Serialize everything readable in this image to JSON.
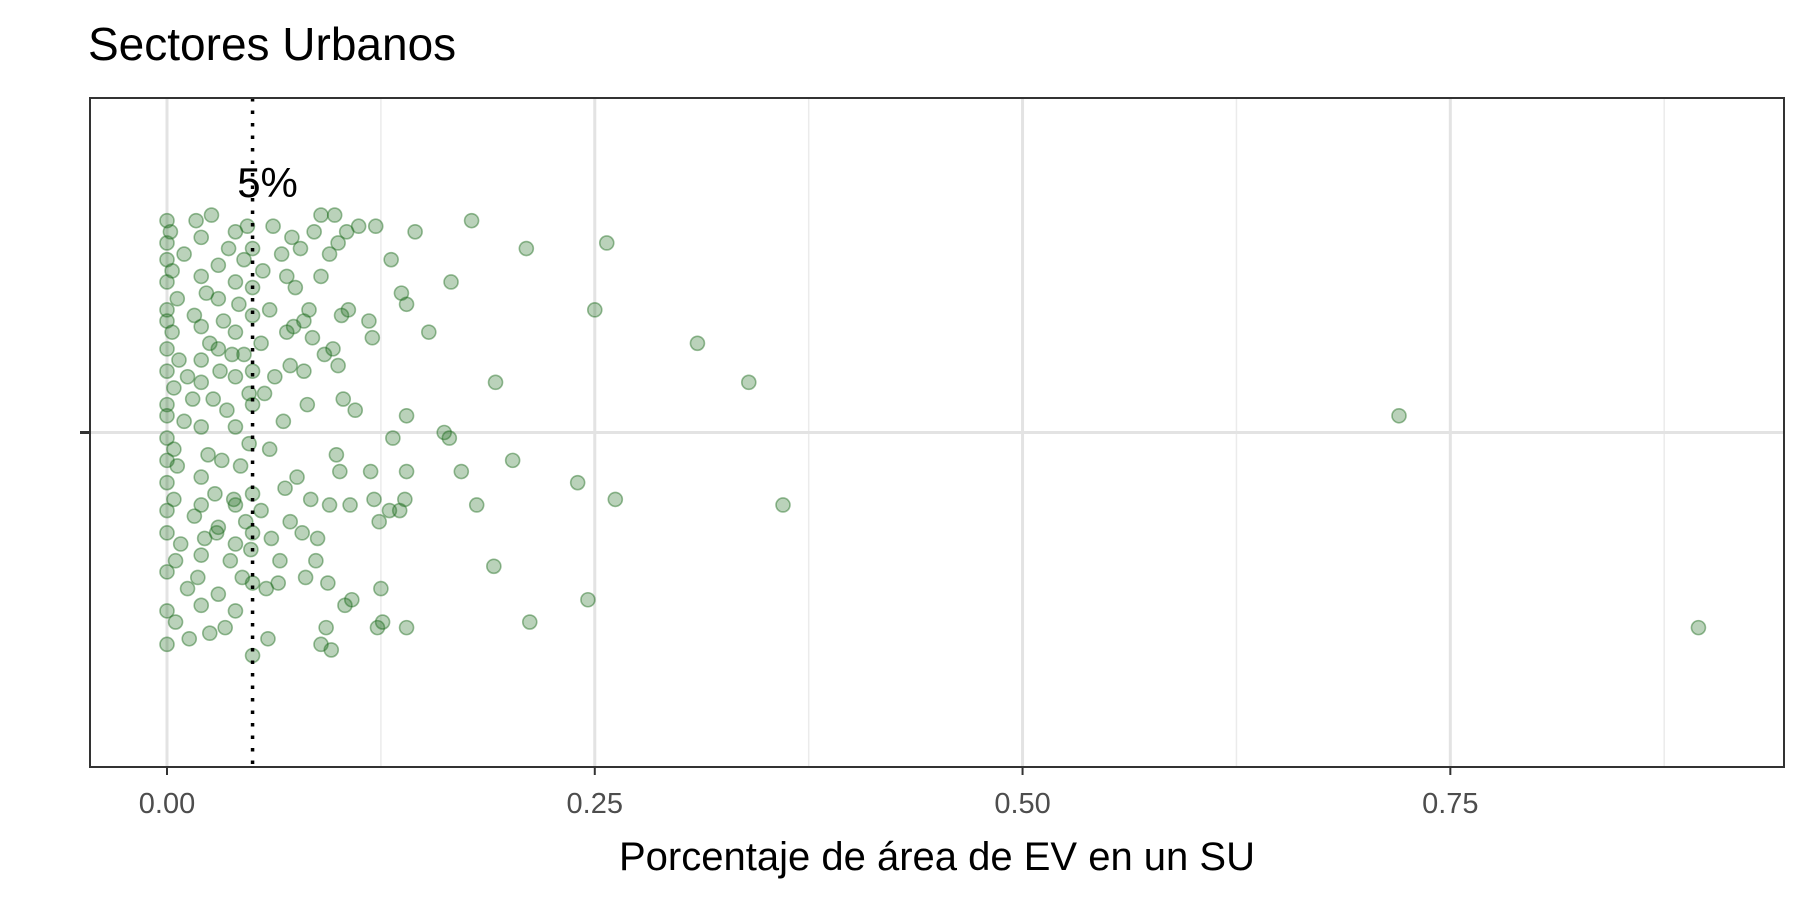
{
  "chart_data": {
    "type": "scatter",
    "title": "Sectores Urbanos",
    "xlabel": "Porcentaje de área de EV en un SU",
    "ylabel": "",
    "xlim": [
      -0.045,
      0.945
    ],
    "ylim": [
      -0.6,
      0.6
    ],
    "x_ticks": [
      0.0,
      0.25,
      0.5,
      0.75
    ],
    "x_tick_labels": [
      "0.00",
      "0.25",
      "0.50",
      "0.75"
    ],
    "grid": true,
    "point_color": "#1a6b1a",
    "reference_line": {
      "x": 0.05,
      "style": "dotted",
      "label": "5%"
    },
    "points": [
      [
        0.0,
        0.38
      ],
      [
        0.0,
        0.34
      ],
      [
        0.0,
        0.31
      ],
      [
        0.0,
        0.27
      ],
      [
        0.0,
        0.22
      ],
      [
        0.0,
        0.2
      ],
      [
        0.0,
        0.15
      ],
      [
        0.0,
        0.11
      ],
      [
        0.0,
        0.05
      ],
      [
        0.0,
        0.03
      ],
      [
        0.0,
        -0.01
      ],
      [
        0.0,
        -0.05
      ],
      [
        0.0,
        -0.09
      ],
      [
        0.0,
        -0.14
      ],
      [
        0.0,
        -0.18
      ],
      [
        0.0,
        -0.25
      ],
      [
        0.0,
        -0.32
      ],
      [
        0.0,
        -0.38
      ],
      [
        0.002,
        0.36
      ],
      [
        0.003,
        0.29
      ],
      [
        0.003,
        0.18
      ],
      [
        0.004,
        0.08
      ],
      [
        0.004,
        -0.03
      ],
      [
        0.004,
        -0.12
      ],
      [
        0.005,
        -0.23
      ],
      [
        0.005,
        -0.34
      ],
      [
        0.006,
        0.24
      ],
      [
        0.006,
        -0.06
      ],
      [
        0.007,
        0.13
      ],
      [
        0.008,
        -0.2
      ],
      [
        0.01,
        0.32
      ],
      [
        0.01,
        0.02
      ],
      [
        0.012,
        -0.28
      ],
      [
        0.012,
        0.1
      ],
      [
        0.013,
        -0.37
      ],
      [
        0.015,
        0.06
      ],
      [
        0.016,
        0.21
      ],
      [
        0.016,
        -0.15
      ],
      [
        0.017,
        0.38
      ],
      [
        0.018,
        -0.26
      ],
      [
        0.02,
        0.35
      ],
      [
        0.02,
        0.28
      ],
      [
        0.02,
        0.19
      ],
      [
        0.02,
        0.13
      ],
      [
        0.02,
        0.09
      ],
      [
        0.02,
        0.01
      ],
      [
        0.02,
        -0.08
      ],
      [
        0.02,
        -0.13
      ],
      [
        0.02,
        -0.22
      ],
      [
        0.02,
        -0.31
      ],
      [
        0.022,
        -0.19
      ],
      [
        0.023,
        0.25
      ],
      [
        0.024,
        -0.04
      ],
      [
        0.025,
        0.16
      ],
      [
        0.025,
        -0.36
      ],
      [
        0.026,
        0.39
      ],
      [
        0.027,
        0.06
      ],
      [
        0.028,
        -0.11
      ],
      [
        0.029,
        -0.18
      ],
      [
        0.03,
        0.3
      ],
      [
        0.03,
        0.24
      ],
      [
        0.03,
        0.15
      ],
      [
        0.03,
        -0.17
      ],
      [
        0.03,
        -0.29
      ],
      [
        0.031,
        0.11
      ],
      [
        0.032,
        -0.05
      ],
      [
        0.033,
        0.2
      ],
      [
        0.034,
        -0.35
      ],
      [
        0.035,
        0.04
      ],
      [
        0.036,
        0.33
      ],
      [
        0.037,
        -0.23
      ],
      [
        0.038,
        0.14
      ],
      [
        0.039,
        -0.12
      ],
      [
        0.04,
        0.36
      ],
      [
        0.04,
        0.27
      ],
      [
        0.04,
        0.18
      ],
      [
        0.04,
        0.1
      ],
      [
        0.04,
        0.01
      ],
      [
        0.04,
        -0.13
      ],
      [
        0.04,
        -0.2
      ],
      [
        0.04,
        -0.32
      ],
      [
        0.042,
        0.23
      ],
      [
        0.043,
        -0.06
      ],
      [
        0.044,
        -0.26
      ],
      [
        0.045,
        0.31
      ],
      [
        0.045,
        0.14
      ],
      [
        0.046,
        -0.16
      ],
      [
        0.047,
        0.37
      ],
      [
        0.048,
        0.07
      ],
      [
        0.048,
        -0.02
      ],
      [
        0.049,
        -0.21
      ],
      [
        0.05,
        0.33
      ],
      [
        0.05,
        0.26
      ],
      [
        0.05,
        0.21
      ],
      [
        0.05,
        0.11
      ],
      [
        0.05,
        0.05
      ],
      [
        0.05,
        -0.11
      ],
      [
        0.05,
        -0.18
      ],
      [
        0.05,
        -0.27
      ],
      [
        0.05,
        -0.4
      ],
      [
        0.055,
        0.16
      ],
      [
        0.055,
        -0.14
      ],
      [
        0.056,
        0.29
      ],
      [
        0.057,
        0.07
      ],
      [
        0.058,
        -0.28
      ],
      [
        0.059,
        -0.37
      ],
      [
        0.06,
        0.22
      ],
      [
        0.06,
        -0.03
      ],
      [
        0.061,
        -0.19
      ],
      [
        0.062,
        0.37
      ],
      [
        0.063,
        0.1
      ],
      [
        0.065,
        -0.27
      ],
      [
        0.066,
        -0.23
      ],
      [
        0.067,
        0.32
      ],
      [
        0.068,
        0.02
      ],
      [
        0.069,
        -0.1
      ],
      [
        0.07,
        0.28
      ],
      [
        0.07,
        0.18
      ],
      [
        0.072,
        0.12
      ],
      [
        0.072,
        -0.16
      ],
      [
        0.073,
        0.35
      ],
      [
        0.074,
        0.19
      ],
      [
        0.075,
        0.26
      ],
      [
        0.076,
        -0.08
      ],
      [
        0.078,
        0.33
      ],
      [
        0.079,
        -0.18
      ],
      [
        0.08,
        0.2
      ],
      [
        0.08,
        0.11
      ],
      [
        0.081,
        -0.26
      ],
      [
        0.082,
        0.05
      ],
      [
        0.083,
        0.22
      ],
      [
        0.084,
        -0.12
      ],
      [
        0.085,
        0.17
      ],
      [
        0.086,
        0.36
      ],
      [
        0.087,
        -0.23
      ],
      [
        0.088,
        -0.19
      ],
      [
        0.09,
        0.39
      ],
      [
        0.09,
        0.28
      ],
      [
        0.09,
        -0.38
      ],
      [
        0.092,
        0.14
      ],
      [
        0.093,
        -0.35
      ],
      [
        0.094,
        -0.27
      ],
      [
        0.095,
        0.32
      ],
      [
        0.095,
        -0.13
      ],
      [
        0.096,
        -0.39
      ],
      [
        0.097,
        0.15
      ],
      [
        0.098,
        0.39
      ],
      [
        0.099,
        -0.04
      ],
      [
        0.1,
        0.34
      ],
      [
        0.1,
        0.12
      ],
      [
        0.101,
        -0.07
      ],
      [
        0.102,
        0.21
      ],
      [
        0.103,
        0.06
      ],
      [
        0.104,
        -0.31
      ],
      [
        0.105,
        0.36
      ],
      [
        0.106,
        0.22
      ],
      [
        0.107,
        -0.13
      ],
      [
        0.108,
        -0.3
      ],
      [
        0.11,
        0.04
      ],
      [
        0.112,
        0.37
      ],
      [
        0.118,
        0.2
      ],
      [
        0.119,
        -0.07
      ],
      [
        0.12,
        0.17
      ],
      [
        0.121,
        -0.12
      ],
      [
        0.122,
        0.37
      ],
      [
        0.123,
        -0.35
      ],
      [
        0.124,
        -0.16
      ],
      [
        0.125,
        -0.28
      ],
      [
        0.126,
        -0.34
      ],
      [
        0.13,
        -0.14
      ],
      [
        0.131,
        0.31
      ],
      [
        0.132,
        -0.01
      ],
      [
        0.136,
        -0.14
      ],
      [
        0.137,
        0.25
      ],
      [
        0.139,
        -0.12
      ],
      [
        0.14,
        0.03
      ],
      [
        0.14,
        0.23
      ],
      [
        0.14,
        -0.07
      ],
      [
        0.14,
        -0.35
      ],
      [
        0.145,
        0.36
      ],
      [
        0.153,
        0.18
      ],
      [
        0.162,
        0.0
      ],
      [
        0.165,
        -0.01
      ],
      [
        0.166,
        0.27
      ],
      [
        0.172,
        -0.07
      ],
      [
        0.178,
        0.38
      ],
      [
        0.181,
        -0.13
      ],
      [
        0.191,
        -0.24
      ],
      [
        0.192,
        0.09
      ],
      [
        0.202,
        -0.05
      ],
      [
        0.21,
        0.33
      ],
      [
        0.212,
        -0.34
      ],
      [
        0.24,
        -0.09
      ],
      [
        0.246,
        -0.3
      ],
      [
        0.25,
        0.22
      ],
      [
        0.257,
        0.34
      ],
      [
        0.262,
        -0.12
      ],
      [
        0.31,
        0.16
      ],
      [
        0.34,
        0.09
      ],
      [
        0.36,
        -0.13
      ],
      [
        0.72,
        0.03
      ],
      [
        0.895,
        -0.35
      ]
    ]
  }
}
